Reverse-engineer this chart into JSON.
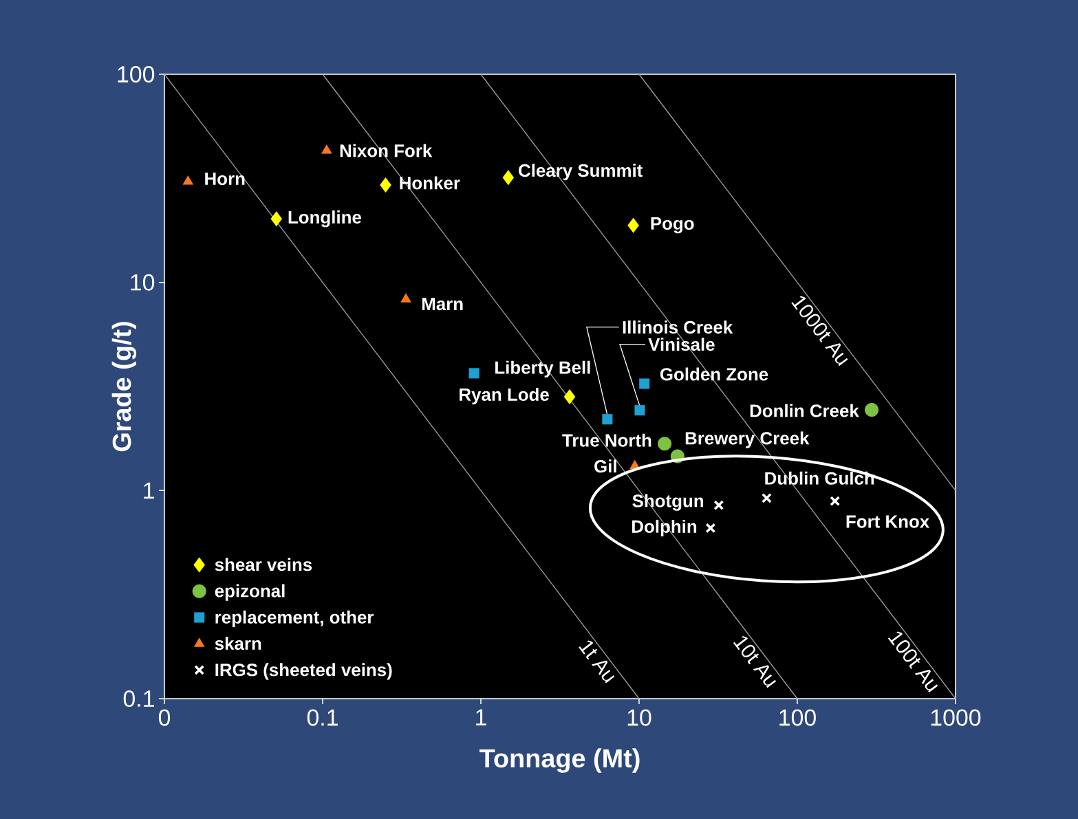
{
  "chart_data": {
    "type": "scatter",
    "xlabel": "Tonnage (Mt)",
    "ylabel": "Grade (g/t)",
    "log": "xy",
    "xlim": [
      0.01,
      1000
    ],
    "ylim": [
      0.1,
      100
    ],
    "xticks": [
      {
        "value": 0.01,
        "label": "0"
      },
      0.1,
      1,
      10,
      100,
      1000
    ],
    "yticks": [
      0.1,
      1,
      10,
      100
    ],
    "grid": false,
    "legend": "bottom left",
    "series": [
      {
        "name": "shear veins",
        "marker": "diamond",
        "color": "#ffff00",
        "x": [
          0.051,
          0.25,
          1.49,
          9.2,
          3.64
        ],
        "values": [
          20.2,
          29.4,
          31.9,
          18.8,
          2.82
        ]
      },
      {
        "name": "epizonal",
        "marker": "circle",
        "color": "#7dc242",
        "x": [
          295,
          14.5,
          17.5
        ],
        "values": [
          2.44,
          1.68,
          1.46
        ]
      },
      {
        "name": "replacement, other",
        "marker": "square",
        "color": "#1ea0d2",
        "x": [
          0.906,
          6.3,
          10.1,
          10.8
        ],
        "values": [
          3.66,
          2.2,
          2.43,
          3.26
        ]
      },
      {
        "name": "skarn",
        "marker": "triangle",
        "color": "#f47920",
        "x": [
          0.0141,
          0.106,
          0.336,
          9.4
        ],
        "values": [
          30.5,
          43,
          8.3,
          1.31
        ]
      },
      {
        "name": "IRGS (sheeted veins)",
        "marker": "cross",
        "color": "#ffffff",
        "x": [
          31.9,
          64,
          173,
          28.3
        ],
        "values": [
          0.85,
          0.92,
          0.89,
          0.66
        ]
      },
      {
        "name": "1t Au",
        "type": "line",
        "line_style": "solid",
        "marker": "none",
        "color": "#a0a0a0",
        "x": [
          0.01,
          10
        ],
        "values": [
          100,
          0.1
        ]
      },
      {
        "name": "10t Au",
        "type": "line",
        "line_style": "solid",
        "marker": "none",
        "color": "#a0a0a0",
        "x": [
          0.1,
          100
        ],
        "values": [
          100,
          0.1
        ]
      },
      {
        "name": "100t Au",
        "type": "line",
        "line_style": "solid",
        "marker": "none",
        "color": "#a0a0a0",
        "x": [
          1,
          1000
        ],
        "values": [
          100,
          0.1
        ]
      },
      {
        "name": "1000t Au",
        "type": "line",
        "line_style": "solid",
        "marker": "none",
        "color": "#a0a0a0",
        "x": [
          10,
          1000
        ],
        "values": [
          100,
          1
        ]
      }
    ],
    "annotations": [
      {
        "text": "Horn",
        "x": 0.0141,
        "y": 30.5
      },
      {
        "text": "Nixon Fork",
        "x": 0.106,
        "y": 43
      },
      {
        "text": "Honker",
        "x": 0.25,
        "y": 29.4
      },
      {
        "text": "Cleary Summit",
        "x": 1.49,
        "y": 31.9
      },
      {
        "text": "Longline",
        "x": 0.051,
        "y": 20.2
      },
      {
        "text": "Pogo",
        "x": 9.2,
        "y": 18.8
      },
      {
        "text": "Marn",
        "x": 0.336,
        "y": 8.3
      },
      {
        "text": "Liberty Bell",
        "x": 0.906,
        "y": 3.66
      },
      {
        "text": "Ryan Lode",
        "x": 3.64,
        "y": 2.82
      },
      {
        "text": "Illinois Creek",
        "x": 6.3,
        "y": 2.2
      },
      {
        "text": "Vinisale",
        "x": 10.1,
        "y": 2.43
      },
      {
        "text": "Golden Zone",
        "x": 10.8,
        "y": 3.26
      },
      {
        "text": "Donlin Creek",
        "x": 295,
        "y": 2.44
      },
      {
        "text": "True North",
        "x": 14.5,
        "y": 1.68
      },
      {
        "text": "Brewery Creek",
        "x": 17.5,
        "y": 1.46
      },
      {
        "text": "Gil",
        "x": 9.4,
        "y": 1.31
      },
      {
        "text": "Dublin Gulch",
        "x": 64,
        "y": 0.92
      },
      {
        "text": "Shotgun",
        "x": 31.9,
        "y": 0.85
      },
      {
        "text": "Fort Knox",
        "x": 173,
        "y": 0.89
      },
      {
        "text": "Dolphin",
        "x": 28.3,
        "y": 0.66
      }
    ]
  }
}
